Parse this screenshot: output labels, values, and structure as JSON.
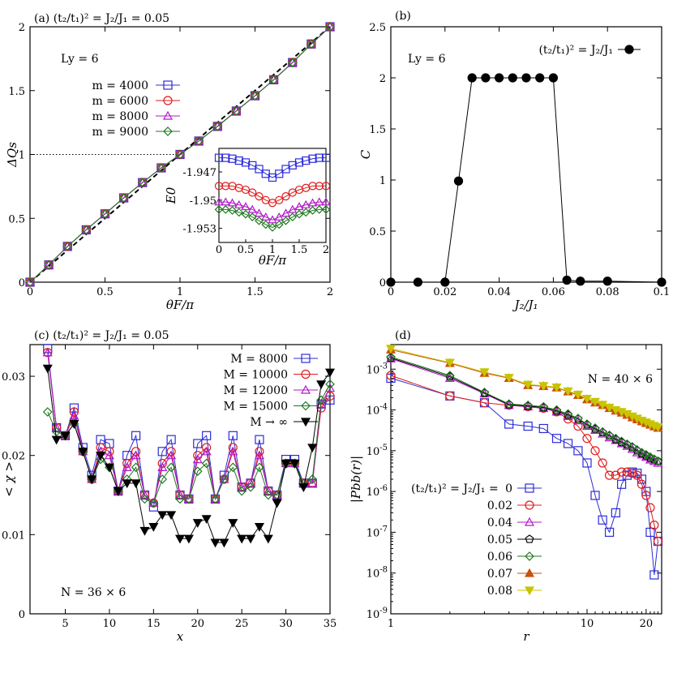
{
  "colors": {
    "blue": "#2c2cd8",
    "red": "#e01b1b",
    "magenta": "#b019c8",
    "darkgreen": "#1f7a1f",
    "black": "#000000",
    "orange": "#c8500a",
    "yellow": "#c8c400"
  },
  "chart_data": [
    {
      "panel": "(a)",
      "type": "line",
      "title": "(a) (t₂/t₁)² = J₂/J₁ = 0.05",
      "xlabel": "θF/π",
      "ylabel": "ΔQs",
      "annotation": "Ly = 6",
      "xlim": [
        0,
        2
      ],
      "ylim": [
        0,
        2
      ],
      "xticks": [
        "0",
        "0.5",
        "1",
        "1.5",
        "2"
      ],
      "yticks": [
        "0",
        "0.5",
        "1",
        "1.5",
        "2"
      ],
      "x": [
        0,
        0.125,
        0.25,
        0.375,
        0.5,
        0.625,
        0.75,
        0.875,
        1,
        1.125,
        1.25,
        1.375,
        1.5,
        1.625,
        1.75,
        1.875,
        2
      ],
      "series": [
        {
          "name": "m = 4000",
          "marker": "square",
          "color": "blue",
          "values": [
            0,
            0.135,
            0.28,
            0.41,
            0.535,
            0.66,
            0.78,
            0.895,
            1.0,
            1.105,
            1.22,
            1.34,
            1.46,
            1.585,
            1.72,
            1.865,
            2.0
          ]
        },
        {
          "name": "m = 6000",
          "marker": "circle",
          "color": "red",
          "values": [
            0,
            0.135,
            0.28,
            0.41,
            0.535,
            0.66,
            0.78,
            0.895,
            1.0,
            1.105,
            1.22,
            1.34,
            1.46,
            1.585,
            1.72,
            1.865,
            2.0
          ]
        },
        {
          "name": "m = 8000",
          "marker": "triangle",
          "color": "magenta",
          "values": [
            0,
            0.135,
            0.28,
            0.41,
            0.535,
            0.66,
            0.78,
            0.895,
            1.0,
            1.105,
            1.22,
            1.34,
            1.46,
            1.585,
            1.72,
            1.865,
            2.0
          ]
        },
        {
          "name": "m = 9000",
          "marker": "diamond",
          "color": "darkgreen",
          "values": [
            0,
            0.135,
            0.28,
            0.41,
            0.535,
            0.66,
            0.78,
            0.895,
            1.0,
            1.105,
            1.22,
            1.34,
            1.46,
            1.585,
            1.72,
            1.865,
            2.0
          ]
        }
      ],
      "reference_lines": {
        "diagonal": [
          [
            0,
            0
          ],
          [
            2,
            2
          ]
        ],
        "horizontal_y": 1
      },
      "inset": {
        "xlabel": "θF/π",
        "ylabel": "E0",
        "xlim": [
          0,
          2
        ],
        "ylim": [
          -1.9545,
          -1.9445
        ],
        "xticks": [
          "0",
          "0.5",
          "1",
          "1.5",
          "2"
        ],
        "yticks": [
          "-1.947",
          "-1.95",
          "-1.953"
        ],
        "ytick_values": [
          -1.947,
          -1.95,
          -1.953
        ],
        "x": [
          0,
          0.125,
          0.25,
          0.375,
          0.5,
          0.625,
          0.75,
          0.875,
          1,
          1.125,
          1.25,
          1.375,
          1.5,
          1.625,
          1.75,
          1.875,
          2
        ],
        "series": [
          {
            "marker": "square",
            "color": "blue",
            "values": [
              -1.9455,
              -1.9455,
              -1.9456,
              -1.9458,
              -1.946,
              -1.9463,
              -1.9467,
              -1.9472,
              -1.9476,
              -1.9472,
              -1.9467,
              -1.9463,
              -1.946,
              -1.9458,
              -1.9456,
              -1.9455,
              -1.9455
            ]
          },
          {
            "marker": "circle",
            "color": "red",
            "values": [
              -1.9485,
              -1.9485,
              -1.9485,
              -1.9487,
              -1.9489,
              -1.9492,
              -1.9496,
              -1.95,
              -1.9503,
              -1.95,
              -1.9496,
              -1.9492,
              -1.9489,
              -1.9487,
              -1.9485,
              -1.9485,
              -1.9485
            ]
          },
          {
            "marker": "triangle",
            "color": "magenta",
            "values": [
              -1.9502,
              -1.9502,
              -1.9503,
              -1.9505,
              -1.9507,
              -1.951,
              -1.9514,
              -1.9518,
              -1.9521,
              -1.9518,
              -1.9514,
              -1.951,
              -1.9507,
              -1.9505,
              -1.9503,
              -1.9502,
              -1.9502
            ]
          },
          {
            "marker": "diamond",
            "color": "darkgreen",
            "values": [
              -1.951,
              -1.951,
              -1.9511,
              -1.9513,
              -1.9515,
              -1.9518,
              -1.9522,
              -1.9526,
              -1.9529,
              -1.9526,
              -1.9522,
              -1.9518,
              -1.9515,
              -1.9513,
              -1.9511,
              -1.951,
              -1.951
            ]
          }
        ]
      }
    },
    {
      "panel": "(b)",
      "type": "line",
      "title": "(b)",
      "xlabel": "J₂/J₁",
      "ylabel": "C",
      "annotation": "Ly = 6",
      "xlim": [
        0,
        0.1
      ],
      "ylim": [
        0,
        2.5
      ],
      "xticks": [
        "0",
        "0.02",
        "0.04",
        "0.06",
        "0.08",
        "0.1"
      ],
      "yticks": [
        "0",
        "0.5",
        "1",
        "1.5",
        "2",
        "2.5"
      ],
      "series": [
        {
          "name": "(t₂/t₁)² = J₂/J₁",
          "marker": "filled-circle",
          "color": "black",
          "x": [
            0,
            0.01,
            0.02,
            0.025,
            0.03,
            0.035,
            0.04,
            0.045,
            0.05,
            0.055,
            0.06,
            0.065,
            0.07,
            0.08,
            0.1
          ],
          "values": [
            0,
            0,
            0,
            0.99,
            2,
            2,
            2,
            2,
            2,
            2,
            2,
            0.02,
            0.01,
            0.01,
            0
          ]
        }
      ]
    },
    {
      "panel": "(c)",
      "type": "line",
      "title": "(c) (t₂/t₁)² = J₂/J₁ = 0.05",
      "xlabel": "x",
      "ylabel": "< χ >",
      "annotation": "N = 36 × 6",
      "xlim": [
        1,
        35
      ],
      "ylim": [
        0,
        0.034
      ],
      "xticks": [
        "5",
        "10",
        "15",
        "20",
        "25",
        "30",
        "35"
      ],
      "xtick_values": [
        5,
        10,
        15,
        20,
        25,
        30,
        35
      ],
      "yticks": [
        "0",
        "0.01",
        "0.02",
        "0.03"
      ],
      "ytick_values": [
        0,
        0.01,
        0.02,
        0.03
      ],
      "x": [
        3,
        4,
        5,
        6,
        7,
        8,
        9,
        10,
        11,
        12,
        13,
        14,
        15,
        16,
        17,
        18,
        19,
        20,
        21,
        22,
        23,
        24,
        25,
        26,
        27,
        28,
        29,
        30,
        31,
        32,
        33,
        34,
        35
      ],
      "series": [
        {
          "name": "M = 8000",
          "marker": "square",
          "color": "blue",
          "values": [
            0.0335,
            0.0235,
            0.0225,
            0.026,
            0.021,
            0.0175,
            0.022,
            0.0215,
            0.0155,
            0.02,
            0.0225,
            0.015,
            0.0135,
            0.0205,
            0.022,
            0.015,
            0.0145,
            0.0215,
            0.0225,
            0.0145,
            0.0175,
            0.0225,
            0.016,
            0.0165,
            0.022,
            0.0155,
            0.015,
            0.0195,
            0.0195,
            0.0165,
            0.0165,
            0.0265,
            0.027
          ]
        },
        {
          "name": "M = 10000",
          "marker": "circle",
          "color": "red",
          "values": [
            0.033,
            0.0235,
            0.0225,
            0.0255,
            0.0205,
            0.017,
            0.021,
            0.0205,
            0.0155,
            0.019,
            0.0205,
            0.015,
            0.014,
            0.019,
            0.0205,
            0.015,
            0.0145,
            0.02,
            0.021,
            0.0145,
            0.017,
            0.021,
            0.016,
            0.0165,
            0.0205,
            0.0155,
            0.015,
            0.019,
            0.019,
            0.0165,
            0.0165,
            0.026,
            0.0275
          ]
        },
        {
          "name": "M = 12000",
          "marker": "triangle",
          "color": "magenta",
          "values": [
            0.033,
            0.0235,
            0.0225,
            0.025,
            0.0205,
            0.017,
            0.0205,
            0.02,
            0.0155,
            0.0185,
            0.02,
            0.015,
            0.014,
            0.0185,
            0.02,
            0.015,
            0.0145,
            0.0195,
            0.0205,
            0.0145,
            0.017,
            0.0205,
            0.016,
            0.0165,
            0.02,
            0.0155,
            0.015,
            0.019,
            0.019,
            0.0165,
            0.0165,
            0.0265,
            0.0285
          ]
        },
        {
          "name": "M = 15000",
          "marker": "diamond",
          "color": "darkgreen",
          "values": [
            0.0255,
            0.023,
            0.0225,
            0.024,
            0.0205,
            0.017,
            0.0195,
            0.0185,
            0.0155,
            0.017,
            0.0185,
            0.0145,
            0.014,
            0.017,
            0.0185,
            0.0145,
            0.0145,
            0.018,
            0.019,
            0.0145,
            0.017,
            0.0185,
            0.0155,
            0.016,
            0.0185,
            0.015,
            0.015,
            0.019,
            0.019,
            0.0165,
            0.017,
            0.027,
            0.029
          ]
        },
        {
          "name": "M → ∞",
          "marker": "filled-down-triangle",
          "color": "black",
          "values": [
            0.031,
            0.022,
            0.0225,
            0.024,
            0.0205,
            0.017,
            0.02,
            0.0185,
            0.0155,
            0.0165,
            0.0165,
            0.0105,
            0.011,
            0.0125,
            0.0125,
            0.0095,
            0.0095,
            0.0115,
            0.012,
            0.009,
            0.009,
            0.0115,
            0.0095,
            0.0095,
            0.011,
            0.0095,
            0.014,
            0.019,
            0.019,
            0.016,
            0.021,
            0.029,
            0.0305
          ]
        }
      ]
    },
    {
      "panel": "(d)",
      "type": "line",
      "title": "(d)",
      "xlabel": "r",
      "ylabel": "|Pbb(r)|",
      "annotation": "N = 40 × 6",
      "legend_prefix": "(t₂/t₁)² = J₂/J₁ = ",
      "xscale": "log",
      "yscale": "log",
      "xlim": [
        1,
        24
      ],
      "ylim": [
        1e-09,
        0.004
      ],
      "xticks": [
        "1",
        "10",
        "20"
      ],
      "xtick_values": [
        1,
        10,
        20
      ],
      "yticks": [
        "10^-9",
        "10^-8",
        "10^-7",
        "10^-6",
        "10^-5",
        "10^-4",
        "10^-3"
      ],
      "ytick_exp": [
        -9,
        -8,
        -7,
        -6,
        -5,
        -4,
        -3
      ],
      "series": [
        {
          "name": "0",
          "marker": "square",
          "color": "blue",
          "x": [
            1,
            2,
            3,
            4,
            5,
            6,
            7,
            8,
            9,
            10,
            11,
            12,
            13,
            14,
            15,
            16,
            17,
            18,
            19,
            20,
            21,
            22,
            23
          ],
          "values": [
            0.0006,
            0.00022,
            0.00015,
            4.5e-05,
            4e-05,
            3.5e-05,
            2e-05,
            1.5e-05,
            1e-05,
            5e-06,
            8e-07,
            2e-07,
            1e-07,
            3e-07,
            1.5e-06,
            2.5e-06,
            3e-06,
            2.8e-06,
            2e-06,
            1e-06,
            1e-07,
            9e-09,
            6e-08
          ]
        },
        {
          "name": "0.02",
          "marker": "circle",
          "color": "red",
          "x": [
            1,
            2,
            3,
            4,
            5,
            6,
            7,
            8,
            9,
            10,
            11,
            12,
            13,
            14,
            15,
            16,
            17,
            18,
            19,
            20,
            21,
            22,
            23
          ],
          "values": [
            0.0007,
            0.00022,
            0.00015,
            0.00013,
            0.00012,
            0.00011,
            9e-05,
            6e-05,
            4e-05,
            2e-05,
            1e-05,
            5e-06,
            2.5e-06,
            2.5e-06,
            3e-06,
            3e-06,
            2.8e-06,
            2.5e-06,
            1.5e-06,
            8e-07,
            4e-07,
            1.5e-07,
            6e-08
          ]
        },
        {
          "name": "0.04",
          "marker": "triangle",
          "color": "magenta",
          "x": [
            1,
            2,
            3,
            4,
            5,
            6,
            7,
            8,
            9,
            10,
            11,
            12,
            13,
            14,
            15,
            16,
            17,
            18,
            19,
            20,
            21,
            22,
            23
          ],
          "values": [
            0.0018,
            0.0006,
            0.00025,
            0.00013,
            0.00012,
            0.00011,
            9e-05,
            7e-05,
            5.5e-05,
            4e-05,
            3.2e-05,
            2.6e-05,
            2.1e-05,
            1.8e-05,
            1.5e-05,
            1.3e-05,
            1.1e-05,
            9e-06,
            8e-06,
            7e-06,
            6e-06,
            5.5e-06,
            5e-06
          ]
        },
        {
          "name": "0.05",
          "marker": "pentagon",
          "color": "black",
          "x": [
            1,
            2,
            3,
            4,
            5,
            6,
            7,
            8,
            9,
            10,
            11,
            12,
            13,
            14,
            15,
            16,
            17,
            18,
            19,
            20,
            21,
            22,
            23
          ],
          "values": [
            0.0019,
            0.00065,
            0.00026,
            0.000135,
            0.000125,
            0.000115,
            9.5e-05,
            7.5e-05,
            6e-05,
            4.3e-05,
            3.4e-05,
            2.8e-05,
            2.3e-05,
            1.9e-05,
            1.6e-05,
            1.4e-05,
            1.2e-05,
            1e-05,
            8.5e-06,
            7.5e-06,
            6.5e-06,
            6e-06,
            5.5e-06
          ]
        },
        {
          "name": "0.06",
          "marker": "diamond",
          "color": "darkgreen",
          "x": [
            1,
            2,
            3,
            4,
            5,
            6,
            7,
            8,
            9,
            10,
            11,
            12,
            13,
            14,
            15,
            16,
            17,
            18,
            19,
            20,
            21,
            22,
            23
          ],
          "values": [
            0.002,
            0.0007,
            0.00027,
            0.00014,
            0.00013,
            0.00012,
            0.0001,
            8e-05,
            6.2e-05,
            4.5e-05,
            3.6e-05,
            2.9e-05,
            2.4e-05,
            2e-05,
            1.7e-05,
            1.45e-05,
            1.25e-05,
            1.05e-05,
            9e-06,
            8e-06,
            7e-06,
            6.2e-06,
            5.5e-06
          ]
        },
        {
          "name": "0.07",
          "marker": "filled-triangle",
          "color": "orange",
          "x": [
            1,
            2,
            3,
            4,
            5,
            6,
            7,
            8,
            9,
            10,
            11,
            12,
            13,
            14,
            15,
            16,
            17,
            18,
            19,
            20,
            21,
            22,
            23
          ],
          "values": [
            0.003,
            0.0014,
            0.0008,
            0.0006,
            0.0004,
            0.00038,
            0.00035,
            0.00028,
            0.00023,
            0.00018,
            0.00015,
            0.00013,
            0.00011,
            9.5e-05,
            8.5e-05,
            7.5e-05,
            6.5e-05,
            5.8e-05,
            5.2e-05,
            4.7e-05,
            4.3e-05,
            3.9e-05,
            3.6e-05
          ]
        },
        {
          "name": "0.08",
          "marker": "filled-down-triangle",
          "color": "yellow",
          "x": [
            1,
            2,
            3,
            4,
            5,
            6,
            7,
            8,
            9,
            10,
            11,
            12,
            13,
            14,
            15,
            16,
            17,
            18,
            19,
            20,
            21,
            22,
            23
          ],
          "values": [
            0.0032,
            0.00145,
            0.00085,
            0.00062,
            0.00042,
            0.00039,
            0.00036,
            0.00029,
            0.00024,
            0.00019,
            0.00016,
            0.000135,
            0.000115,
            0.0001,
            9e-05,
            8e-05,
            7e-05,
            6.2e-05,
            5.5e-05,
            5e-05,
            4.5e-05,
            4.1e-05,
            3.8e-05
          ]
        }
      ]
    }
  ]
}
